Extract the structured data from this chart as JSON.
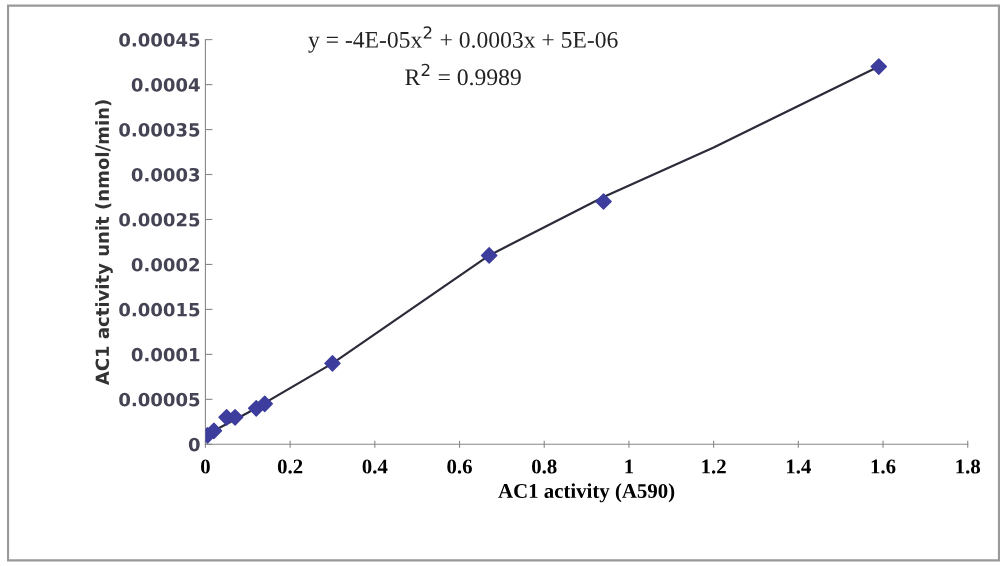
{
  "chart_data": {
    "type": "scatter",
    "xlabel": "AC1 activity (A590)",
    "ylabel": "AC1 activity unit (nmol/min)",
    "annotations": [
      "y = -4E-05x$^{2}$ + 0.0003x + 5E-06",
      "R$^{2}$ = 0.9989"
    ],
    "series": [
      {
        "color": "#3d3d9e",
        "marker": "diamond",
        "x": [
          0.005,
          0.02,
          0.05,
          0.07,
          0.12,
          0.14,
          0.3,
          0.67,
          0.94,
          1.59
        ],
        "values": [
          1e-05,
          1.5e-05,
          3e-05,
          3e-05,
          4e-05,
          4.5e-05,
          9e-05,
          0.00021,
          0.00027,
          0.00042
        ]
      },
      {
        "type": "line",
        "color": "#2b2b3a",
        "marker": "none",
        "line_style": "solid",
        "x": [
          0,
          0.1,
          0.3,
          0.67,
          0.94,
          1.2,
          1.59
        ],
        "values": [
          1e-05,
          3.5e-05,
          9e-05,
          0.00021,
          0.000275,
          0.00033,
          0.00042
        ]
      }
    ],
    "xlim": [
      0,
      1.8
    ],
    "xticks": [
      0,
      0.2,
      0.4,
      0.6,
      0.8,
      1,
      1.2,
      1.4,
      1.6,
      1.8
    ],
    "ylim": [
      0,
      0.00045
    ],
    "yticks": [
      {
        "value": 0,
        "label": "0"
      },
      {
        "value": 5e-05,
        "label": "0.00005"
      },
      {
        "value": 0.0001,
        "label": "0.0001"
      },
      {
        "value": 0.00015,
        "label": "0.00015"
      },
      {
        "value": 0.0002,
        "label": "0.0002"
      },
      {
        "value": 0.00025,
        "label": "0.00025"
      },
      {
        "value": 0.0003,
        "label": "0.0003"
      },
      {
        "value": 0.00035,
        "label": "0.00035"
      },
      {
        "value": 0.0004,
        "label": "0.0004"
      },
      {
        "value": 0.00045,
        "label": "0.00045"
      }
    ],
    "grid": false,
    "legend": false
  }
}
